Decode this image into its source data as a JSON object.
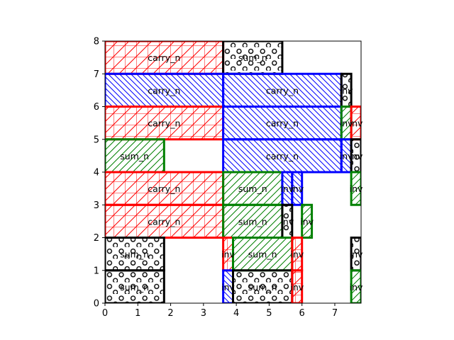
{
  "chart_data": {
    "type": "rectangle-layout",
    "title": "",
    "xlabel": "",
    "ylabel": "",
    "xlim": [
      0,
      7.8
    ],
    "ylim": [
      0,
      8
    ],
    "xticks": [
      "0",
      "1",
      "2",
      "3",
      "4",
      "5",
      "6",
      "7"
    ],
    "yticks": [
      "0",
      "1",
      "2",
      "3",
      "4",
      "5",
      "6",
      "7",
      "8"
    ],
    "grid": false,
    "legend": "none",
    "styles": {
      "carry_n": {
        "color": "#ff0000",
        "hatch": "grid-diagonal"
      },
      "carry_n_blue": {
        "color": "#0000ff",
        "hatch": "backslash"
      },
      "sum_n": {
        "color": "#008000",
        "hatch": "slash"
      },
      "sum_n_black": {
        "color": "#000000",
        "hatch": "circles"
      },
      "inv_black": {
        "color": "#000000",
        "hatch": "circles"
      },
      "inv_green": {
        "color": "#008000",
        "hatch": "slash"
      },
      "inv_red": {
        "color": "#ff0000",
        "hatch": "grid-diagonal"
      },
      "inv_blue": {
        "color": "#0000ff",
        "hatch": "backslash"
      }
    },
    "rects": [
      {
        "label": "carry_n",
        "style": "carry_n",
        "x0": 0,
        "x1": 3.6,
        "y0": 7,
        "y1": 8
      },
      {
        "label": "sum_n",
        "style": "sum_n_black",
        "x0": 3.6,
        "x1": 5.4,
        "y0": 7,
        "y1": 8
      },
      {
        "label": "carry_n",
        "style": "carry_n_blue",
        "x0": 0,
        "x1": 3.6,
        "y0": 6,
        "y1": 7
      },
      {
        "label": "carry_n",
        "style": "carry_n_blue",
        "x0": 3.6,
        "x1": 7.2,
        "y0": 6,
        "y1": 7
      },
      {
        "label": "inv",
        "style": "inv_black",
        "x0": 7.2,
        "x1": 7.5,
        "y0": 6,
        "y1": 7
      },
      {
        "label": "carry_n",
        "style": "carry_n",
        "x0": 0,
        "x1": 3.6,
        "y0": 5,
        "y1": 6
      },
      {
        "label": "carry_n",
        "style": "carry_n_blue",
        "x0": 3.6,
        "x1": 7.2,
        "y0": 5,
        "y1": 6
      },
      {
        "label": "inv",
        "style": "inv_green",
        "x0": 7.2,
        "x1": 7.5,
        "y0": 5,
        "y1": 6
      },
      {
        "label": "inv",
        "style": "inv_red",
        "x0": 7.5,
        "x1": 7.8,
        "y0": 5,
        "y1": 6
      },
      {
        "label": "sum_n",
        "style": "sum_n",
        "x0": 0,
        "x1": 1.8,
        "y0": 4,
        "y1": 5
      },
      {
        "label": "carry_n",
        "style": "carry_n_blue",
        "x0": 3.6,
        "x1": 7.2,
        "y0": 4,
        "y1": 5
      },
      {
        "label": "inv",
        "style": "inv_blue",
        "x0": 7.2,
        "x1": 7.5,
        "y0": 4,
        "y1": 5
      },
      {
        "label": "inv",
        "style": "inv_black",
        "x0": 7.5,
        "x1": 7.8,
        "y0": 4,
        "y1": 5
      },
      {
        "label": "carry_n",
        "style": "carry_n",
        "x0": 0,
        "x1": 3.6,
        "y0": 3,
        "y1": 4
      },
      {
        "label": "sum_n",
        "style": "sum_n",
        "x0": 3.6,
        "x1": 5.4,
        "y0": 3,
        "y1": 4
      },
      {
        "label": "inv",
        "style": "inv_blue",
        "x0": 5.4,
        "x1": 5.7,
        "y0": 3,
        "y1": 4
      },
      {
        "label": "inv",
        "style": "inv_blue",
        "x0": 5.7,
        "x1": 6.0,
        "y0": 3,
        "y1": 4
      },
      {
        "label": "inv",
        "style": "inv_green",
        "x0": 7.5,
        "x1": 7.8,
        "y0": 3,
        "y1": 4
      },
      {
        "label": "carry_n",
        "style": "carry_n",
        "x0": 0,
        "x1": 3.6,
        "y0": 2,
        "y1": 3
      },
      {
        "label": "sum_n",
        "style": "sum_n",
        "x0": 3.6,
        "x1": 5.4,
        "y0": 2,
        "y1": 3
      },
      {
        "label": "inv",
        "style": "inv_black",
        "x0": 5.4,
        "x1": 5.7,
        "y0": 2,
        "y1": 3
      },
      {
        "label": "inv",
        "style": "inv_green",
        "x0": 6.0,
        "x1": 6.3,
        "y0": 2,
        "y1": 3
      },
      {
        "label": "sum_n",
        "style": "sum_n_black",
        "x0": 0,
        "x1": 1.8,
        "y0": 1,
        "y1": 2
      },
      {
        "label": "inv",
        "style": "inv_red",
        "x0": 3.6,
        "x1": 3.9,
        "y0": 1,
        "y1": 2
      },
      {
        "label": "sum_n",
        "style": "sum_n",
        "x0": 3.9,
        "x1": 5.7,
        "y0": 1,
        "y1": 2
      },
      {
        "label": "inv",
        "style": "inv_red",
        "x0": 5.7,
        "x1": 6.0,
        "y0": 1,
        "y1": 2
      },
      {
        "label": "inv",
        "style": "inv_black",
        "x0": 7.5,
        "x1": 7.8,
        "y0": 1,
        "y1": 2
      },
      {
        "label": "sum_n",
        "style": "sum_n_black",
        "x0": 0,
        "x1": 1.8,
        "y0": 0,
        "y1": 1
      },
      {
        "label": "inv",
        "style": "inv_blue",
        "x0": 3.6,
        "x1": 3.9,
        "y0": 0,
        "y1": 1
      },
      {
        "label": "sum_n",
        "style": "sum_n_black",
        "x0": 3.9,
        "x1": 5.7,
        "y0": 0,
        "y1": 1
      },
      {
        "label": "inv",
        "style": "inv_red",
        "x0": 5.7,
        "x1": 6.0,
        "y0": 0,
        "y1": 1
      },
      {
        "label": "inv",
        "style": "inv_green",
        "x0": 7.5,
        "x1": 7.8,
        "y0": 0,
        "y1": 1
      }
    ]
  }
}
